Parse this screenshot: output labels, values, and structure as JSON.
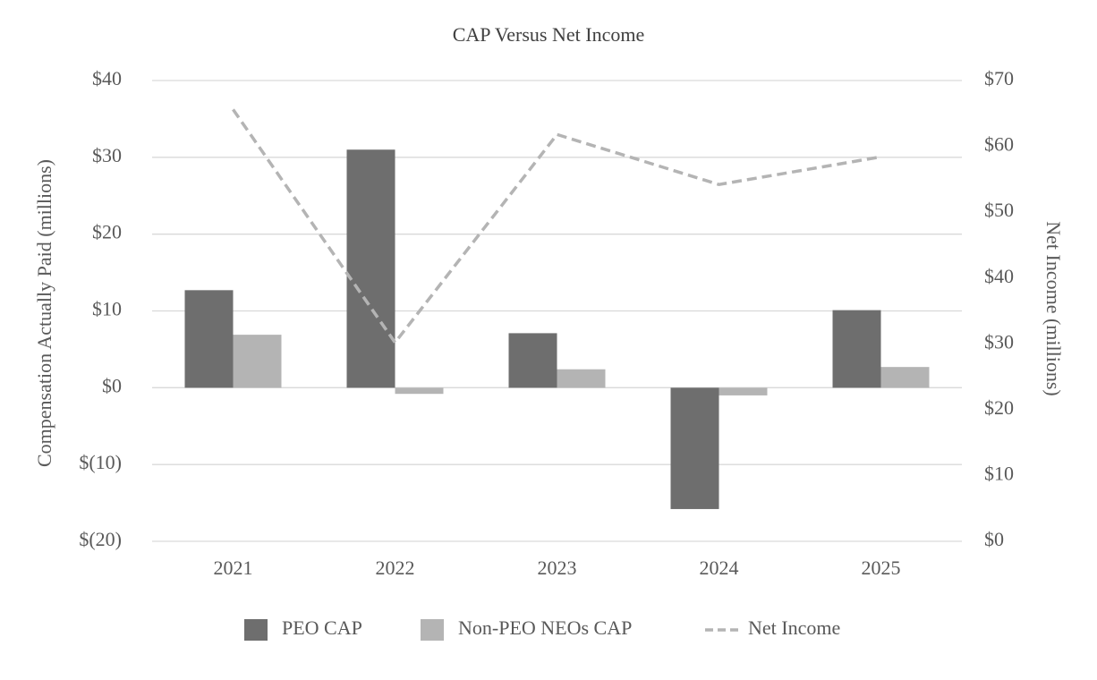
{
  "chart_data": {
    "type": "bar",
    "title": "CAP Versus Net Income",
    "categories": [
      "2021",
      "2022",
      "2023",
      "2024",
      "2025"
    ],
    "y_label": "Compensation Actually Paid (millions)",
    "y2_label": "Net Income (millions)",
    "ylim": [
      -20,
      40
    ],
    "yticks": [
      {
        "value": -20,
        "label": "$(20)"
      },
      {
        "value": -10,
        "label": "$(10)"
      },
      {
        "value": 0,
        "label": "$0"
      },
      {
        "value": 10,
        "label": "$10"
      },
      {
        "value": 20,
        "label": "$20"
      },
      {
        "value": 30,
        "label": "$30"
      },
      {
        "value": 40,
        "label": "$40"
      }
    ],
    "y2lim": [
      0,
      70
    ],
    "y2ticks": [
      {
        "value": 0,
        "label": "$0"
      },
      {
        "value": 10,
        "label": "$10"
      },
      {
        "value": 20,
        "label": "$20"
      },
      {
        "value": 30,
        "label": "$30"
      },
      {
        "value": 40,
        "label": "$40"
      },
      {
        "value": 50,
        "label": "$50"
      },
      {
        "value": 60,
        "label": "$60"
      },
      {
        "value": 70,
        "label": "$70"
      }
    ],
    "grid": true,
    "legend": "bottom",
    "series": [
      {
        "name": "PEO CAP",
        "color": "#6e6e6e",
        "values": [
          12.7,
          31.0,
          7.1,
          -15.8,
          10.1
        ]
      },
      {
        "name": "Non-PEO NEOs CAP",
        "color": "#b4b4b4",
        "values": [
          6.9,
          -0.8,
          2.4,
          -1.0,
          2.7
        ]
      },
      {
        "name": "Net Income",
        "color": "#b4b4b4",
        "type": "line",
        "axis": "y2",
        "values": [
          65.6,
          30.2,
          61.8,
          54.2,
          58.4
        ]
      }
    ]
  }
}
